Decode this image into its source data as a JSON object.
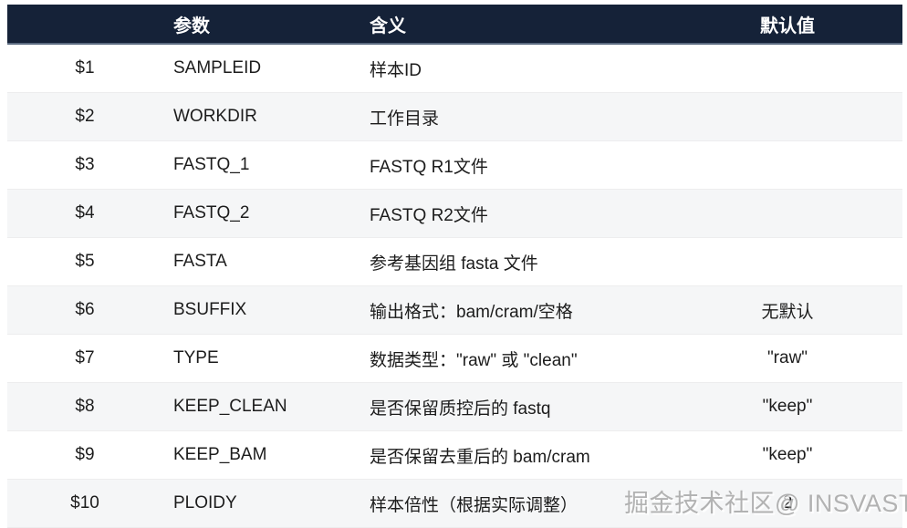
{
  "table": {
    "headers": [
      "",
      "参数",
      "含义",
      "默认值"
    ],
    "rows": [
      {
        "num": "$1",
        "param": "SAMPLEID",
        "meaning": "样本ID",
        "default": ""
      },
      {
        "num": "$2",
        "param": "WORKDIR",
        "meaning": "工作目录",
        "default": ""
      },
      {
        "num": "$3",
        "param": "FASTQ_1",
        "meaning": "FASTQ R1文件",
        "default": ""
      },
      {
        "num": "$4",
        "param": "FASTQ_2",
        "meaning": "FASTQ R2文件",
        "default": ""
      },
      {
        "num": "$5",
        "param": "FASTA",
        "meaning": "参考基因组 fasta 文件",
        "default": ""
      },
      {
        "num": "$6",
        "param": "BSUFFIX",
        "meaning": "输出格式：bam/cram/空格",
        "default": "无默认"
      },
      {
        "num": "$7",
        "param": "TYPE",
        "meaning": "数据类型：\"raw\" 或 \"clean\"",
        "default": "\"raw\""
      },
      {
        "num": "$8",
        "param": "KEEP_CLEAN",
        "meaning": "是否保留质控后的 fastq",
        "default": "\"keep\""
      },
      {
        "num": "$9",
        "param": "KEEP_BAM",
        "meaning": "是否保留去重后的 bam/cram",
        "default": "\"keep\""
      },
      {
        "num": "$10",
        "param": "PLOIDY",
        "meaning": "样本倍性（根据实际调整）",
        "default": "2"
      }
    ]
  },
  "watermark": {
    "text": "掘金技术社区@ INSVAST"
  },
  "colors": {
    "header_bg": "#152238",
    "header_border": "#5b6b80",
    "row_alt_bg": "#f5f6f7",
    "row_border": "#ededee",
    "body_text": "#1c1c1c",
    "watermark_text": "#8c8c8c"
  }
}
